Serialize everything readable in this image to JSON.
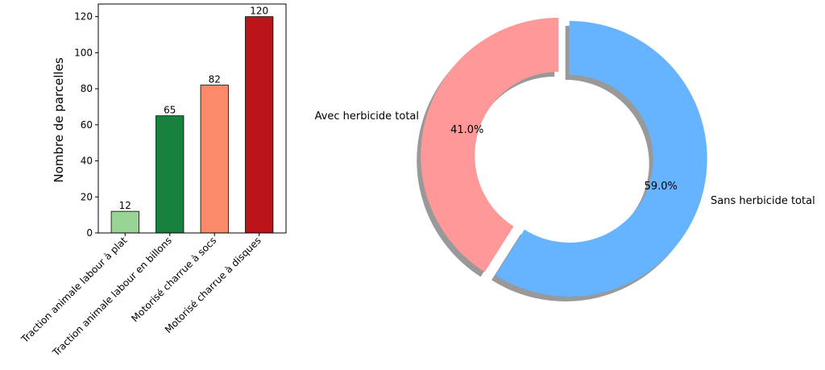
{
  "chart_data": [
    {
      "type": "bar",
      "title": "",
      "xlabel": "",
      "ylabel": "Nombre de parcelles",
      "ylim": [
        0,
        127
      ],
      "yticks": [
        0,
        20,
        40,
        60,
        80,
        100,
        120
      ],
      "categories": [
        "Traction animale labour à plat",
        "Traction animale labour en billons",
        "Motorisé charrue à socs",
        "Motorisé charrue à disques"
      ],
      "values": [
        12,
        65,
        82,
        120
      ],
      "data_labels": [
        "12",
        "65",
        "82",
        "120"
      ],
      "colors": [
        "#98d594",
        "#17813d",
        "#fb8a6a",
        "#bb151b"
      ],
      "grid": false
    },
    {
      "type": "pie",
      "style": "donut",
      "title": "",
      "labels": [
        "Avec herbicide total",
        "Sans herbicide total"
      ],
      "values": [
        41.0,
        59.0
      ],
      "pct_labels": [
        "41.0%",
        "59.0%"
      ],
      "colors": [
        "#ff9999",
        "#66b3ff"
      ],
      "exploded": true,
      "shadow": true
    }
  ]
}
